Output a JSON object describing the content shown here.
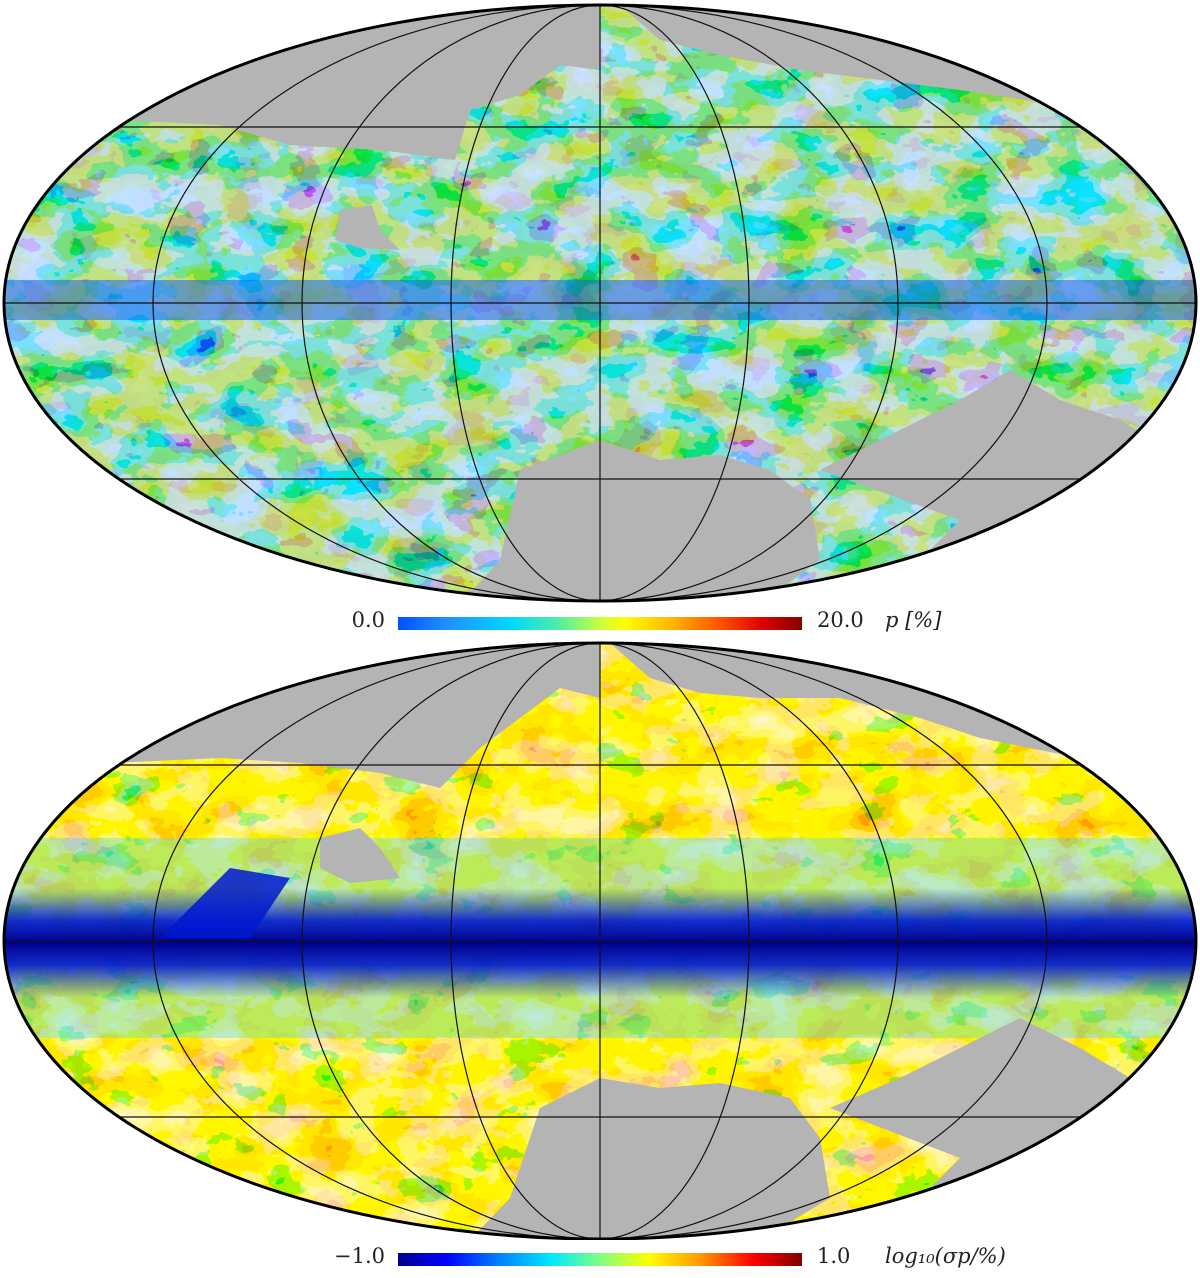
{
  "maps": [
    {
      "id": "top",
      "colorbar": {
        "min": "0.0",
        "max": "20.0",
        "label": "p  [%]"
      },
      "palette": [
        "#0050ff",
        "#00c8ff",
        "#80ff80",
        "#ffff00",
        "#ff6000",
        "#c00000"
      ],
      "masked_color": "#b4b4b4"
    },
    {
      "id": "bottom",
      "colorbar": {
        "min": "−1.0",
        "max": "1.0",
        "label": "log₁₀(σp/%)"
      },
      "palette": [
        "#00008c",
        "#0040ff",
        "#00d0ff",
        "#80ff80",
        "#ffff00",
        "#ff9000",
        "#e00000"
      ],
      "masked_color": "#b4b4b4"
    }
  ]
}
